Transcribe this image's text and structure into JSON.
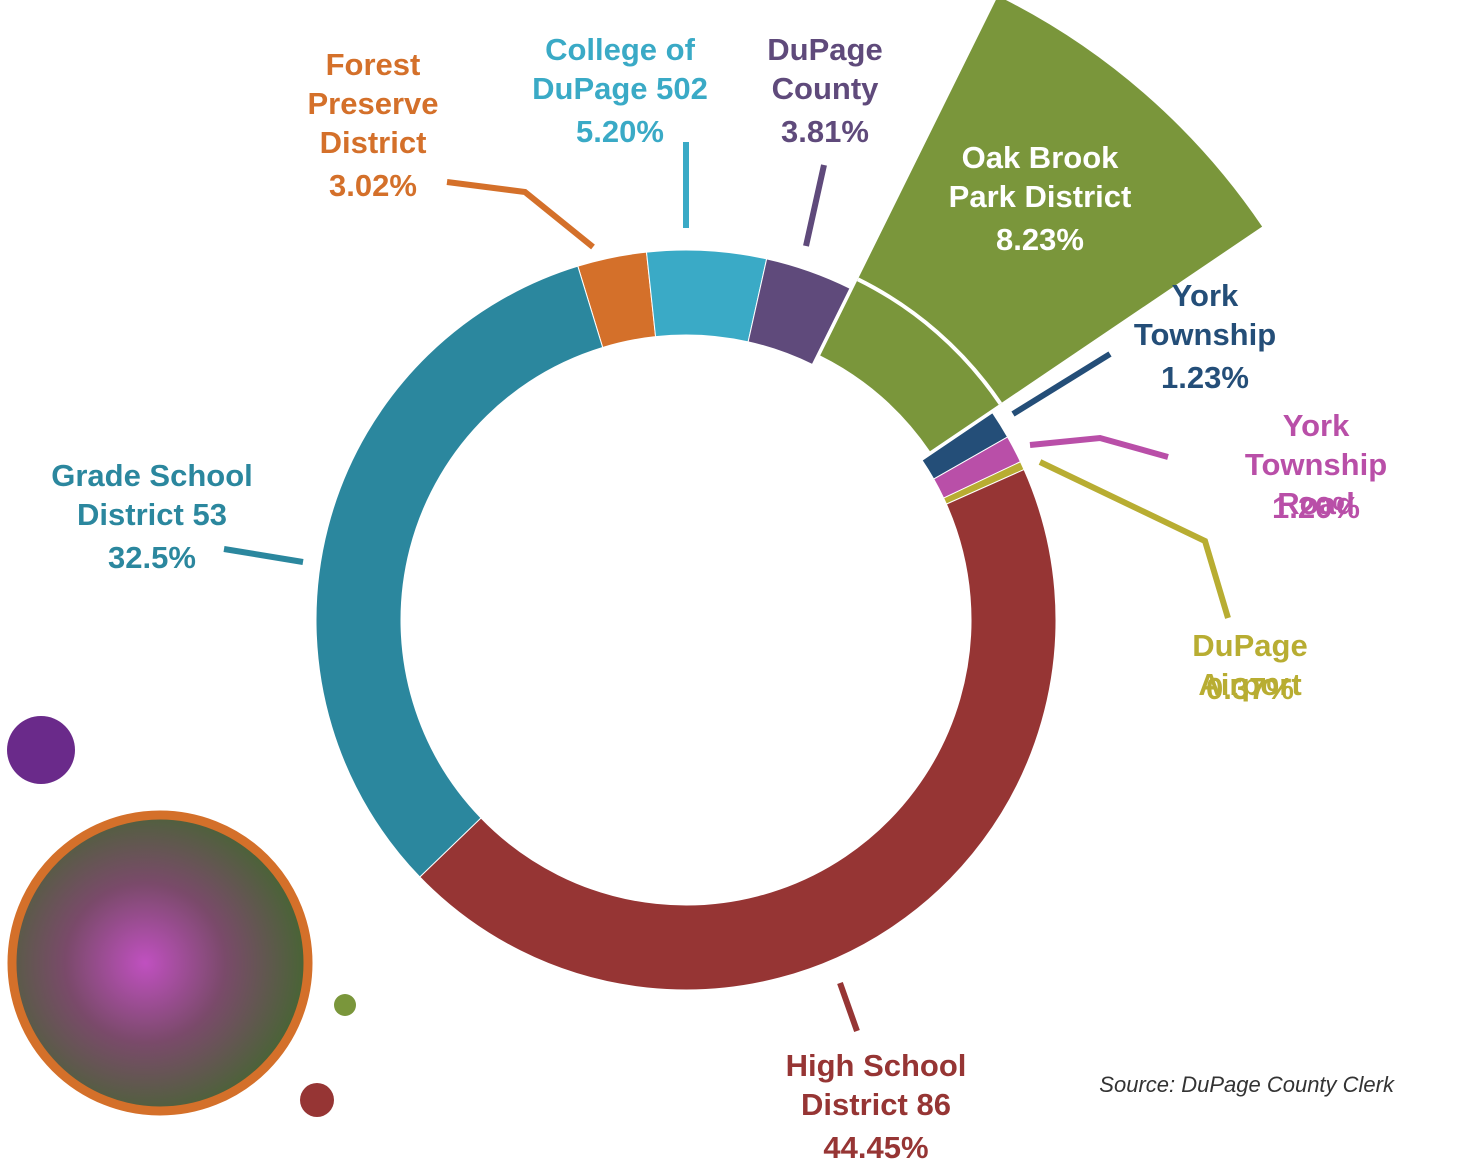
{
  "chart_data": {
    "type": "donut",
    "categories": [
      "Forest\nPreserve\nDistrict",
      "College of\nDuPage 502",
      "DuPage\nCounty",
      "Oak Brook\nPark District",
      "York\nTownship",
      "York\nTownship Road",
      "DuPage Airport",
      "High School\nDistrict 86",
      "Grade School\nDistrict 53"
    ],
    "values": [
      3.02,
      5.2,
      3.81,
      8.23,
      1.23,
      1.2,
      0.37,
      44.45,
      32.5
    ],
    "value_labels": [
      "3.02%",
      "5.20%",
      "3.81%",
      "8.23%",
      "1.23%",
      "1.20%",
      "0.37%",
      "44.45%",
      "32.5%"
    ],
    "colors": [
      "#d4702a",
      "#3aaac6",
      "#5f4a7b",
      "#7a963b",
      "#244e78",
      "#b94fa8",
      "#b8ad32",
      "#963534",
      "#2b879e"
    ],
    "source": "Source: DuPage County Clerk"
  }
}
